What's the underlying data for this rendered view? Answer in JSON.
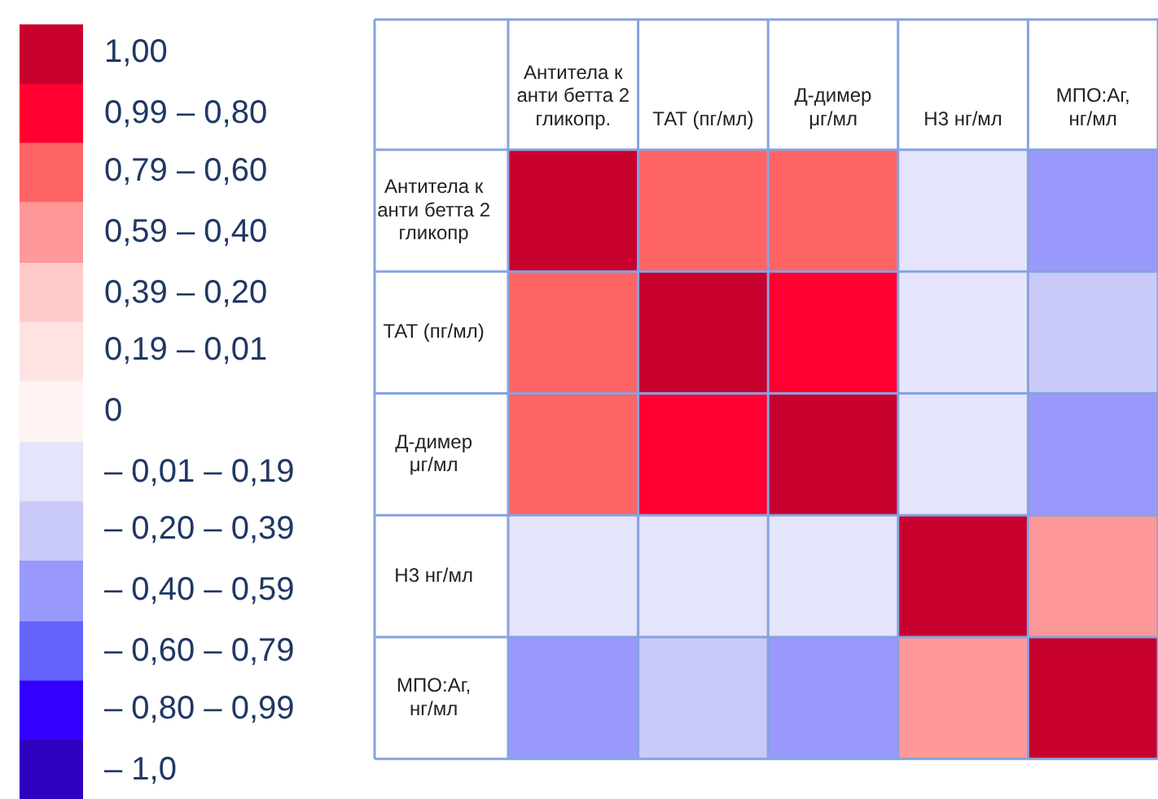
{
  "chart_data": {
    "type": "heatmap",
    "categories": [
      "Антитела к анти бетта 2 гликопр.",
      "ТАТ (пг/мл)",
      "Д-димер μг/мл",
      "Н3 нг/мл",
      "МПО:Аг, нг/мл"
    ],
    "y_categories": [
      "Антитела к анти бетта 2 гликопр",
      "ТАТ (пг/мл)",
      "Д-димер μг/мл",
      "Н3 нг/мл",
      "МПО:Аг, нг/мл"
    ],
    "cells": [
      [
        1,
        0.67,
        0.67,
        -0.17,
        -0.5
      ],
      [
        0.67,
        1,
        0.83,
        -0.17,
        -0.33
      ],
      [
        0.67,
        0.83,
        1,
        -0.17,
        -0.5
      ],
      [
        -0.17,
        -0.17,
        -0.17,
        1,
        0.5
      ],
      [
        -0.5,
        -0.33,
        -0.5,
        0.5,
        1
      ]
    ],
    "clim": [
      -1.08,
      1.08
    ],
    "cticks": [
      {
        "value": 1,
        "label": "1,00"
      },
      {
        "value": 0.83,
        "label": "0,99 – 0,80"
      },
      {
        "value": 0.67,
        "label": "0,79 – 0,60"
      },
      {
        "value": 0.5,
        "label": "0,59 – 0,40"
      },
      {
        "value": 0.33,
        "label": "0,39 – 0,20"
      },
      {
        "value": 0.17,
        "label": "0,19 – 0,01"
      },
      {
        "value": 0,
        "label": "0"
      },
      {
        "value": -0.17,
        "label": "– 0,01 – 0,19"
      },
      {
        "value": -0.33,
        "label": "– 0,20 – 0,39"
      },
      {
        "value": -0.5,
        "label": "– 0,40 – 0,59"
      },
      {
        "value": -0.67,
        "label": "– 0,60 – 0,79"
      },
      {
        "value": -0.83,
        "label": "– 0,80 – 0,99"
      },
      {
        "value": -1,
        "label": "– 1,0"
      }
    ],
    "colors": [
      "#c8002e",
      "#ff0030",
      "#ff6464",
      "#ff9898",
      "#ffcaca",
      "#ffe3e3",
      "#fff3f3",
      "#e4e4fa",
      "#cacaf9",
      "#9999fb",
      "#6464fd",
      "#3300ff",
      "#3000c0"
    ]
  }
}
